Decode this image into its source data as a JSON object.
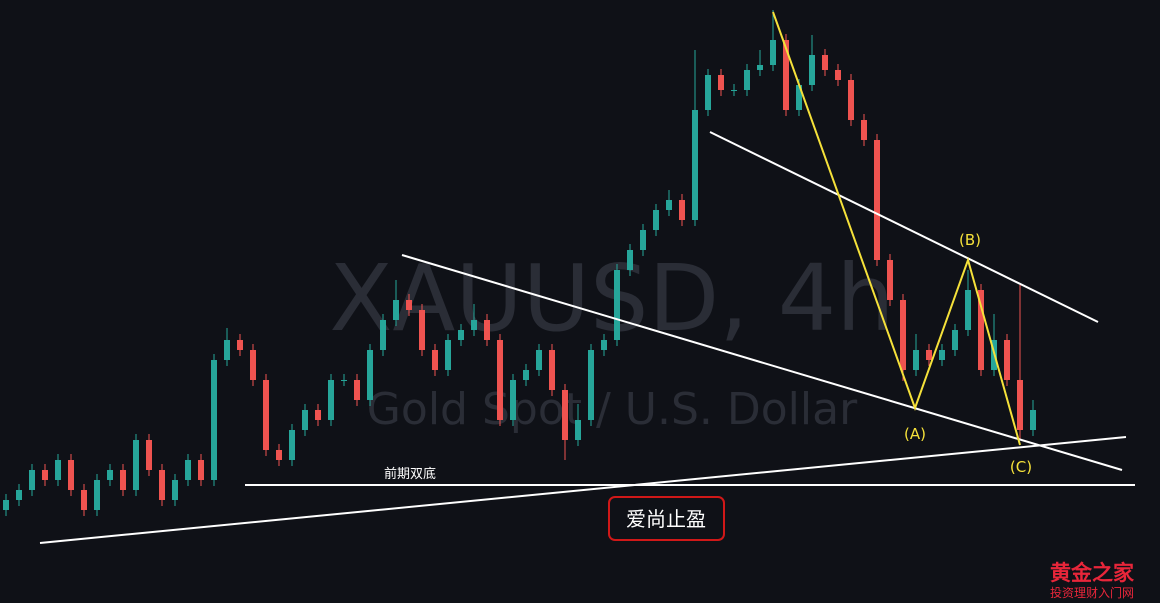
{
  "chart_data": {
    "type": "candlestick",
    "watermark_symbol": "XAUUSD, 4h",
    "watermark_name": "Gold Spot / U.S. Dollar",
    "annotations": {
      "double_bottom": "前期双底",
      "take_profit": "爱尚止盈",
      "wave_a": "(A)",
      "wave_b": "(B)",
      "wave_c": "(C)"
    },
    "brand": {
      "name": "黄金之家",
      "tagline": "投资理财入门网"
    },
    "up_color": "#26a69a",
    "down_color": "#ef5350",
    "ylim": [
      0,
      603
    ],
    "open": [
      93,
      103,
      113,
      133,
      123,
      143,
      113,
      93,
      123,
      133,
      113,
      163,
      133,
      103,
      123,
      143,
      123,
      243,
      263,
      253,
      223,
      153,
      143,
      173,
      193,
      183,
      223,
      223,
      203,
      253,
      283,
      303,
      293,
      253,
      233,
      263,
      273,
      283,
      263,
      183,
      223,
      233,
      253,
      213,
      163,
      183,
      253,
      263,
      333,
      353,
      373,
      393,
      403,
      383,
      493,
      528,
      513,
      513,
      533,
      538,
      563,
      493,
      518,
      548,
      533,
      523,
      483,
      463,
      343,
      303,
      233,
      253,
      243,
      253,
      273,
      313,
      233,
      263,
      223,
      173
    ],
    "high": [
      109,
      119,
      139,
      139,
      149,
      149,
      119,
      129,
      139,
      139,
      169,
      169,
      139,
      129,
      149,
      149,
      249,
      275,
      269,
      259,
      229,
      159,
      179,
      199,
      199,
      229,
      229,
      229,
      259,
      289,
      323,
      309,
      299,
      259,
      269,
      279,
      299,
      289,
      269,
      229,
      239,
      259,
      259,
      219,
      199,
      259,
      269,
      339,
      359,
      379,
      399,
      413,
      409,
      553,
      534,
      534,
      519,
      539,
      553,
      593,
      569,
      524,
      568,
      554,
      539,
      529,
      489,
      469,
      349,
      309,
      269,
      259,
      259,
      279,
      333,
      319,
      289,
      269,
      318,
      203
    ],
    "low": [
      87,
      97,
      107,
      117,
      117,
      107,
      87,
      87,
      117,
      107,
      107,
      127,
      97,
      97,
      117,
      117,
      117,
      237,
      247,
      217,
      147,
      137,
      137,
      167,
      177,
      177,
      217,
      197,
      197,
      247,
      277,
      287,
      247,
      227,
      227,
      257,
      267,
      257,
      177,
      177,
      217,
      227,
      207,
      143,
      157,
      177,
      247,
      257,
      327,
      347,
      367,
      387,
      377,
      377,
      487,
      507,
      507,
      507,
      527,
      532,
      487,
      487,
      512,
      527,
      517,
      477,
      457,
      337,
      297,
      222,
      227,
      237,
      237,
      247,
      267,
      227,
      227,
      217,
      163,
      167
    ],
    "close": [
      103,
      113,
      133,
      123,
      143,
      113,
      93,
      123,
      133,
      113,
      163,
      133,
      103,
      123,
      143,
      123,
      243,
      263,
      253,
      223,
      153,
      143,
      173,
      193,
      183,
      223,
      223,
      203,
      253,
      283,
      303,
      293,
      253,
      233,
      263,
      273,
      283,
      263,
      183,
      223,
      233,
      253,
      213,
      163,
      183,
      253,
      263,
      333,
      353,
      373,
      393,
      403,
      383,
      493,
      528,
      513,
      513,
      533,
      538,
      563,
      493,
      518,
      548,
      533,
      523,
      483,
      463,
      343,
      303,
      233,
      253,
      243,
      253,
      273,
      313,
      233,
      263,
      223,
      173,
      193
    ]
  }
}
